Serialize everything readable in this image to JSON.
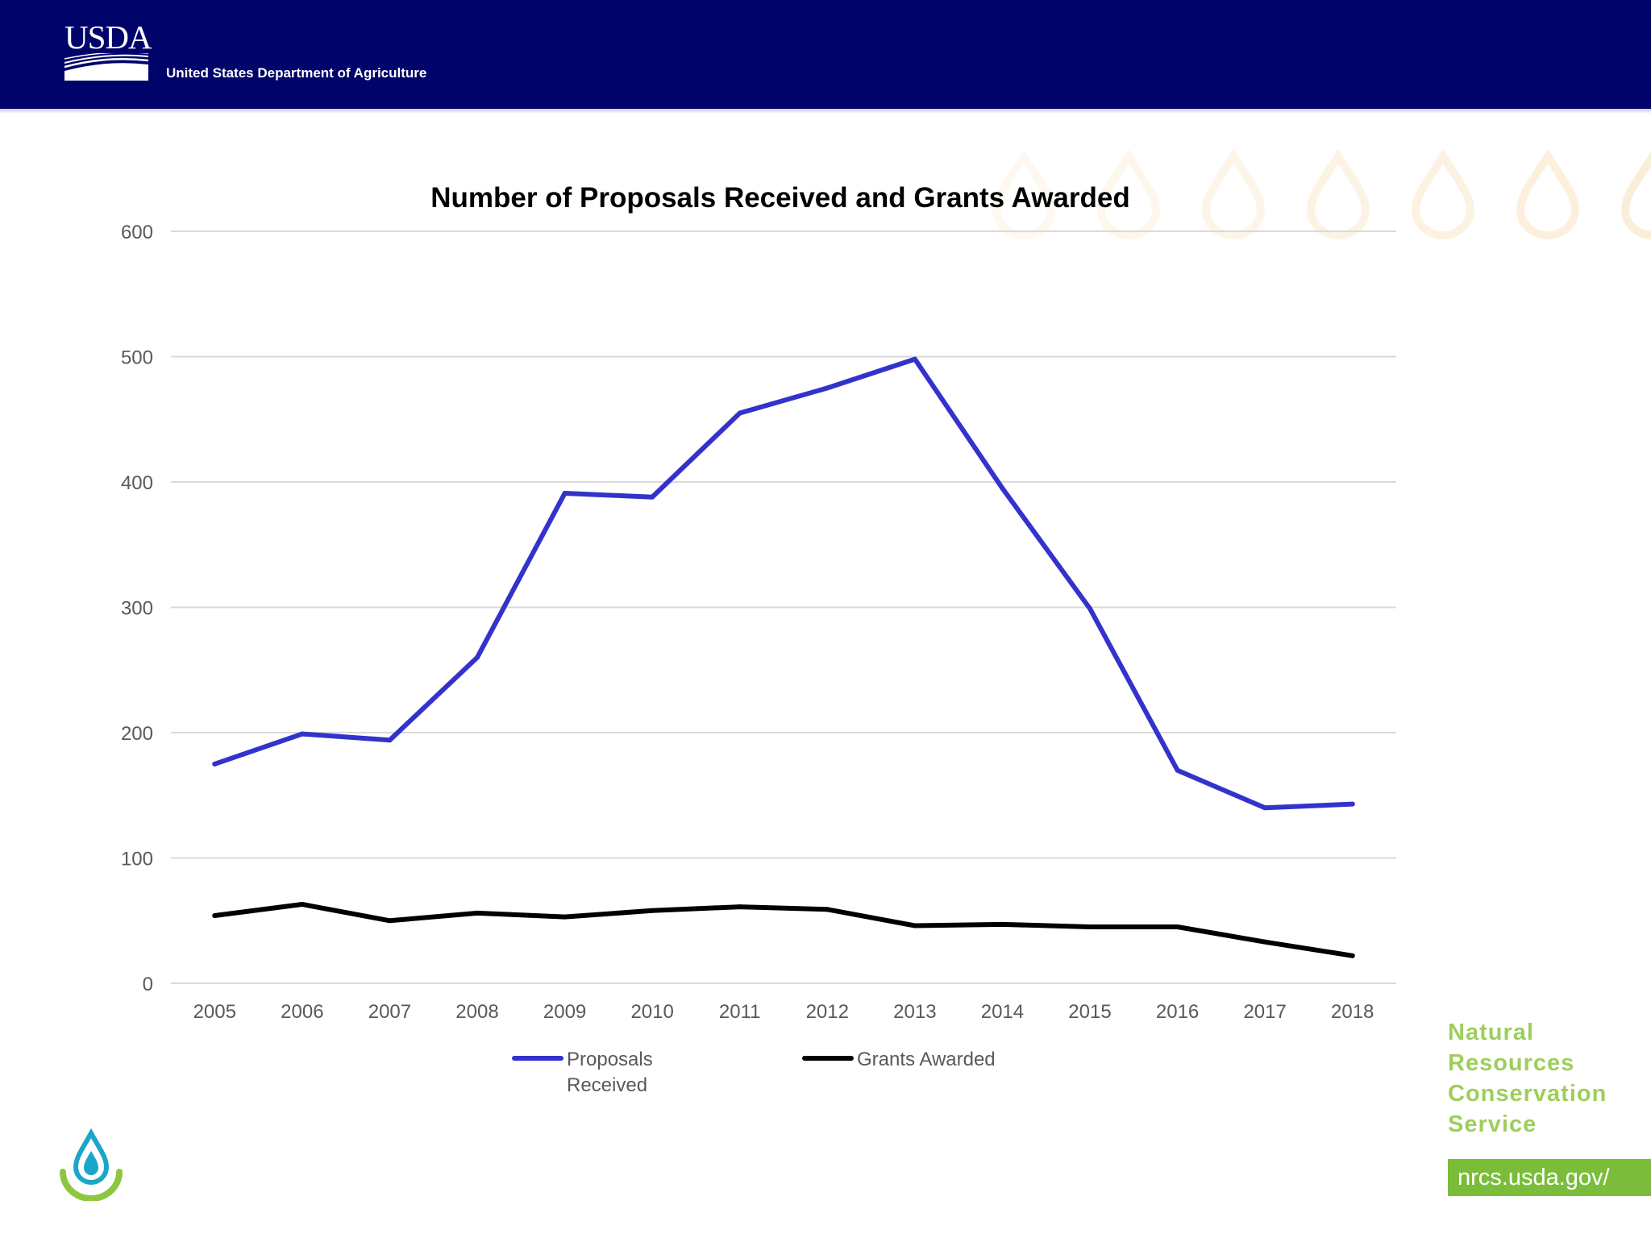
{
  "header": {
    "logo_text": "USDA",
    "department": "United States Department of Agriculture",
    "brand_color": "#00046a"
  },
  "chart_data": {
    "type": "line",
    "title": "Number of Proposals Received and Grants Awarded",
    "xlabel": "",
    "ylabel": "",
    "ylim": [
      0,
      600
    ],
    "yticks": [
      "0",
      "100",
      "200",
      "300",
      "400",
      "500",
      "600"
    ],
    "categories": [
      "2005",
      "2006",
      "2007",
      "2008",
      "2009",
      "2010",
      "2011",
      "2012",
      "2013",
      "2014",
      "2015",
      "2016",
      "2017",
      "2018"
    ],
    "grid": true,
    "legend_position": "bottom",
    "series": [
      {
        "name": "Proposals Received",
        "legend_lines": [
          "Proposals",
          "Received"
        ],
        "color": "#3333cc",
        "values": [
          175,
          199,
          194,
          260,
          391,
          388,
          455,
          475,
          498,
          395,
          299,
          170,
          140,
          143
        ]
      },
      {
        "name": "Grants Awarded",
        "legend_lines": [
          "Grants Awarded"
        ],
        "color": "#000000",
        "values": [
          54,
          63,
          50,
          56,
          53,
          58,
          61,
          59,
          46,
          47,
          45,
          45,
          33,
          22
        ]
      }
    ]
  },
  "footer": {
    "agency_lines": [
      "Natural",
      "Resources",
      "Conservation",
      "Service"
    ],
    "url": "nrcs.usda.gov/",
    "accent_color": "#8dc63f"
  }
}
